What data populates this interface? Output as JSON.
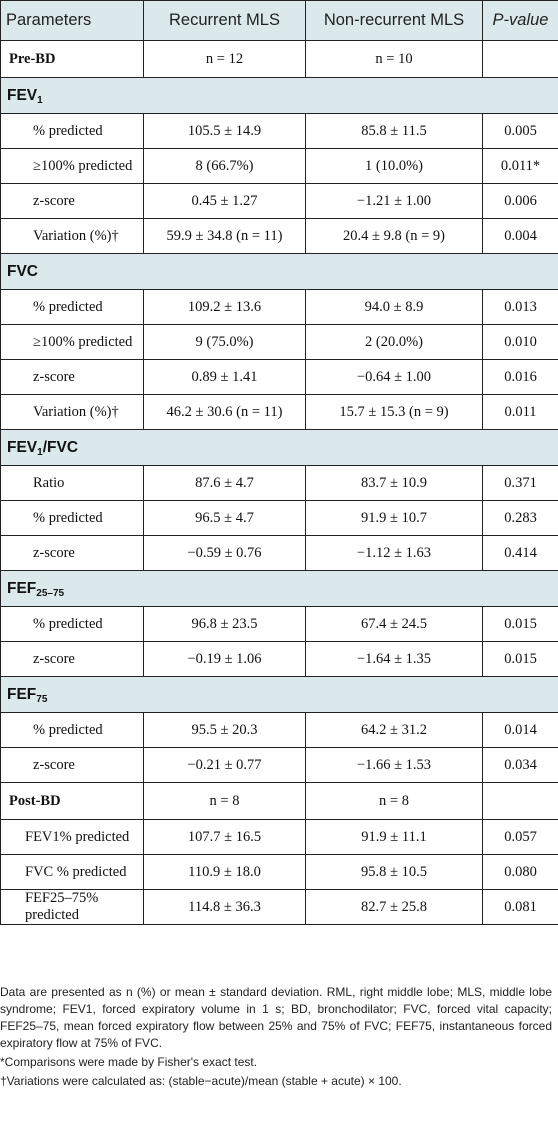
{
  "headers": [
    "Parameters",
    "Recurrent MLS",
    "Non-recurrent MLS",
    "P-value"
  ],
  "rows": [
    {
      "kind": "pre",
      "cells": [
        "Pre-BD",
        "n = 12",
        "n = 10",
        ""
      ]
    },
    {
      "kind": "section",
      "label": "FEV",
      "sub": "1"
    },
    {
      "kind": "data",
      "cells": [
        "% predicted",
        "105.5 ± 14.9",
        "85.8 ± 11.5",
        "0.005"
      ]
    },
    {
      "kind": "data",
      "cells": [
        "≥100% predicted",
        "8 (66.7%)",
        "1 (10.0%)",
        "0.011*"
      ]
    },
    {
      "kind": "data",
      "cells": [
        "z-score",
        "0.45 ± 1.27",
        "−1.21 ± 1.00",
        "0.006"
      ]
    },
    {
      "kind": "data",
      "cells": [
        "Variation (%)†",
        "59.9 ± 34.8 (n = 11)",
        "20.4 ± 9.8 (n = 9)",
        "0.004"
      ]
    },
    {
      "kind": "section",
      "label": "FVC",
      "sub": ""
    },
    {
      "kind": "data",
      "cells": [
        "% predicted",
        "109.2 ± 13.6",
        "94.0 ± 8.9",
        "0.013"
      ]
    },
    {
      "kind": "data",
      "cells": [
        "≥100% predicted",
        "9 (75.0%)",
        "2 (20.0%)",
        "0.010"
      ]
    },
    {
      "kind": "data",
      "cells": [
        "z-score",
        "0.89 ± 1.41",
        "−0.64 ± 1.00",
        "0.016"
      ]
    },
    {
      "kind": "data",
      "cells": [
        "Variation (%)†",
        "46.2 ± 30.6 (n = 11)",
        "15.7 ± 15.3 (n = 9)",
        "0.011"
      ]
    },
    {
      "kind": "section",
      "label": "FEV",
      "sub": "1",
      "suffix": "/FVC"
    },
    {
      "kind": "data",
      "cells": [
        "Ratio",
        "87.6 ± 4.7",
        "83.7 ± 10.9",
        "0.371"
      ]
    },
    {
      "kind": "data",
      "cells": [
        "% predicted",
        "96.5 ± 4.7",
        "91.9 ± 10.7",
        "0.283"
      ]
    },
    {
      "kind": "data",
      "cells": [
        "z-score",
        "−0.59 ± 0.76",
        "−1.12 ± 1.63",
        "0.414"
      ]
    },
    {
      "kind": "section",
      "label": "FEF",
      "sub": "25–75"
    },
    {
      "kind": "data",
      "cells": [
        "% predicted",
        "96.8 ± 23.5",
        "67.4 ± 24.5",
        "0.015"
      ]
    },
    {
      "kind": "data",
      "cells": [
        "z-score",
        "−0.19 ± 1.06",
        "−1.64 ± 1.35",
        "0.015"
      ]
    },
    {
      "kind": "section",
      "label": "FEF",
      "sub": "75"
    },
    {
      "kind": "data",
      "cells": [
        "% predicted",
        "95.5 ± 20.3",
        "64.2 ± 31.2",
        "0.014"
      ]
    },
    {
      "kind": "data",
      "cells": [
        "z-score",
        "−0.21 ± 0.77",
        "−1.66 ± 1.53",
        "0.034"
      ]
    },
    {
      "kind": "pre",
      "cells": [
        "Post-BD",
        "n = 8",
        "n = 8",
        ""
      ]
    },
    {
      "kind": "post",
      "cells": [
        "FEV1% predicted",
        "107.7 ± 16.5",
        "91.9 ± 11.1",
        "0.057"
      ]
    },
    {
      "kind": "post",
      "cells": [
        "FVC % predicted",
        "110.9 ± 18.0",
        "95.8 ± 10.5",
        "0.080"
      ]
    },
    {
      "kind": "post",
      "cells": [
        "FEF25–75% predicted",
        "114.8 ± 36.3",
        "82.7 ± 25.8",
        "0.081"
      ]
    }
  ],
  "footnotes": [
    "Data are presented as n (%) or mean ± standard deviation. RML, right middle lobe; MLS, middle lobe syndrome; FEV1, forced expiratory volume in 1 s; BD, bronchodilator; FVC, forced vital capacity; FEF25–75, mean forced expiratory flow between 25% and 75% of FVC; FEF75, instantaneous forced expiratory flow at 75% of FVC.",
    "*Comparisons were made by Fisher's exact test.",
    "†Variations were calculated as: (stable−acute)/mean (stable + acute) × 100."
  ]
}
